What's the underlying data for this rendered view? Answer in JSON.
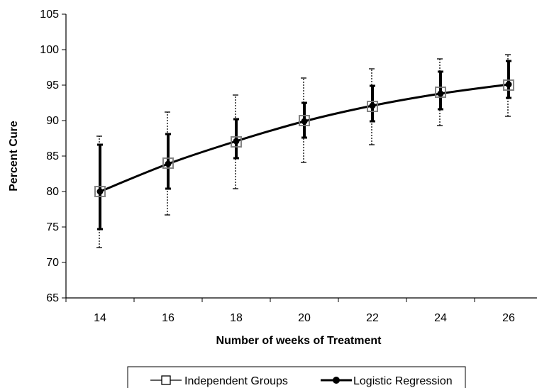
{
  "chart_data": {
    "type": "line",
    "title": "",
    "xlabel": "Number of weeks of Treatment",
    "ylabel": "Percent Cure",
    "x": [
      14,
      16,
      18,
      20,
      22,
      24,
      26
    ],
    "xlim": [
      14,
      26
    ],
    "ylim": [
      65,
      105
    ],
    "yticks": [
      65,
      70,
      75,
      80,
      85,
      90,
      95,
      100,
      105
    ],
    "grid": false,
    "legend_position": "bottom",
    "series": [
      {
        "name": "Independent Groups",
        "marker": "open-square",
        "values": [
          80,
          84,
          87,
          90,
          92,
          94,
          95
        ],
        "error_low": [
          72.1,
          76.7,
          80.4,
          84.1,
          86.6,
          89.3,
          90.6
        ],
        "error_high": [
          87.8,
          91.2,
          93.6,
          96,
          97.3,
          98.7,
          99.3
        ]
      },
      {
        "name": "Logistic Regression",
        "marker": "filled-circle",
        "values": [
          80,
          83.9,
          87.1,
          89.9,
          92.1,
          93.8,
          95.1
        ],
        "error_low": [
          74.7,
          80.4,
          84.7,
          87.6,
          89.9,
          91.6,
          93.2
        ],
        "error_high": [
          86.6,
          88.1,
          90.2,
          92.5,
          94.9,
          96.9,
          98.4
        ]
      }
    ]
  },
  "colors": {
    "line": "#000000",
    "background": "#ffffff"
  }
}
